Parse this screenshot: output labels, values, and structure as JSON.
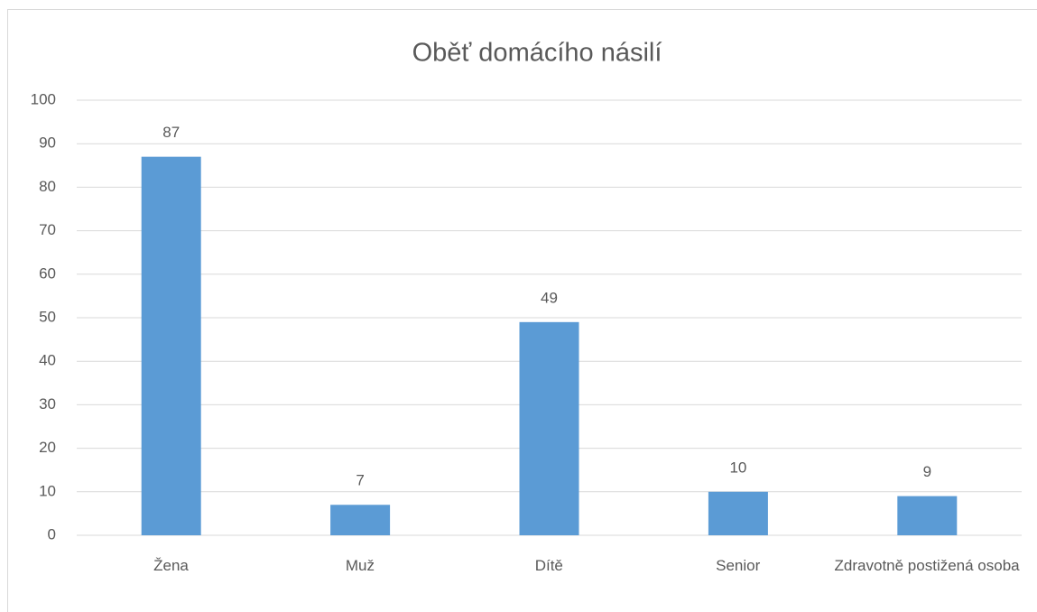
{
  "chart_data": {
    "type": "bar",
    "title": "Oběť domácího násilí",
    "categories": [
      "Žena",
      "Muž",
      "Dítě",
      "Senior",
      "Zdravotně postižená osoba"
    ],
    "values": [
      87,
      7,
      49,
      10,
      9
    ],
    "color": "#5b9bd5",
    "ylim": [
      0,
      100
    ],
    "yticks": [
      0,
      10,
      20,
      30,
      40,
      50,
      60,
      70,
      80,
      90,
      100
    ],
    "grid": true
  }
}
